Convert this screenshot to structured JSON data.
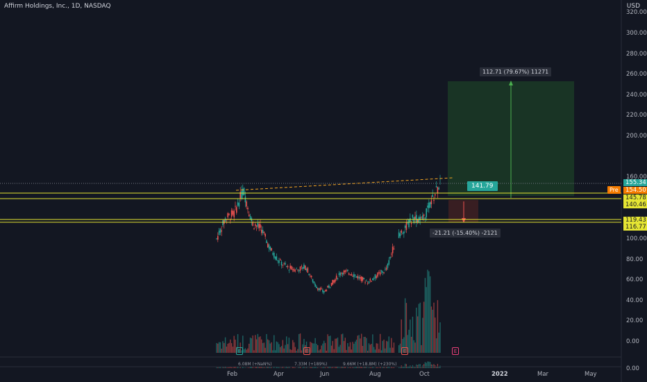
{
  "header": {
    "title": "Affirm Holdings, Inc., 1D, NASDAQ",
    "currency": "USD"
  },
  "price_axis": {
    "ticks": [
      {
        "label": "320.00",
        "value": 320
      },
      {
        "label": "300.00",
        "value": 300
      },
      {
        "label": "280.00",
        "value": 280
      },
      {
        "label": "260.00",
        "value": 260
      },
      {
        "label": "240.00",
        "value": 240
      },
      {
        "label": "220.00",
        "value": 220
      },
      {
        "label": "200.00",
        "value": 200
      },
      {
        "label": "160.00",
        "value": 160
      },
      {
        "label": "100.00",
        "value": 100
      },
      {
        "label": "80.00",
        "value": 80
      },
      {
        "label": "60.00",
        "value": 60
      },
      {
        "label": "40.00",
        "value": 40
      },
      {
        "label": "20.00",
        "value": 20
      },
      {
        "label": "0.00",
        "value": 0
      }
    ],
    "bottom_tick": "0.00"
  },
  "price_tags": {
    "current": "155.34",
    "pre_label": "Pre",
    "pre_value": "154.50",
    "level_145": "145.78",
    "level_140": "140.46",
    "level_119": "119.43",
    "level_116": "116.77"
  },
  "time_axis": [
    "Feb",
    "Apr",
    "Jun",
    "Aug",
    "Oct",
    "2022",
    "Mar",
    "May"
  ],
  "annotations": {
    "long_target": "112.71 (79.67%) 11271",
    "stop_loss": "-21.21 (-15.40%) -2121",
    "entry_callout": "141.79"
  },
  "earnings_markers": [
    "E",
    "E",
    "E",
    "E"
  ],
  "volume_labels": [
    "6.08M (+NaN%)",
    "7.33M (+189%)",
    "9.66M (+18.8M) (+230%)"
  ],
  "colors": {
    "background": "#131722",
    "up": "#26a69a",
    "down": "#ef5350",
    "hline": "#e5e533",
    "target_zone": "#1b3a26",
    "target_line": "#4caf50"
  },
  "chart_data": {
    "type": "candlestick",
    "symbol": "Affirm Holdings, Inc.",
    "interval": "1D",
    "exchange": "NASDAQ",
    "ylim": [
      0,
      320
    ],
    "horizontal_levels": [
      145.78,
      140.46,
      119.43,
      116.77
    ],
    "price_path": [
      {
        "x": "Jan 13",
        "close": 100
      },
      {
        "x": "Jan 20",
        "close": 120
      },
      {
        "x": "Jan 27",
        "close": 125
      },
      {
        "x": "Feb 5",
        "close": 148
      },
      {
        "x": "Feb 12",
        "close": 115
      },
      {
        "x": "Feb 20",
        "close": 110
      },
      {
        "x": "Mar 1",
        "close": 90
      },
      {
        "x": "Mar 10",
        "close": 78
      },
      {
        "x": "Mar 20",
        "close": 72
      },
      {
        "x": "Apr 1",
        "close": 70
      },
      {
        "x": "Apr 15",
        "close": 73
      },
      {
        "x": "May 1",
        "close": 55
      },
      {
        "x": "May 10",
        "close": 48
      },
      {
        "x": "May 25",
        "close": 58
      },
      {
        "x": "Jun 10",
        "close": 68
      },
      {
        "x": "Jun 25",
        "close": 67
      },
      {
        "x": "Jul 10",
        "close": 62
      },
      {
        "x": "Jul 25",
        "close": 58
      },
      {
        "x": "Aug 5",
        "close": 65
      },
      {
        "x": "Aug 15",
        "close": 70
      },
      {
        "x": "Aug 25",
        "close": 98
      },
      {
        "x": "Sep 5",
        "close": 110
      },
      {
        "x": "Sep 15",
        "close": 120
      },
      {
        "x": "Sep 25",
        "close": 118
      },
      {
        "x": "Oct 5",
        "close": 135
      },
      {
        "x": "Oct 12",
        "close": 155
      }
    ]
  }
}
